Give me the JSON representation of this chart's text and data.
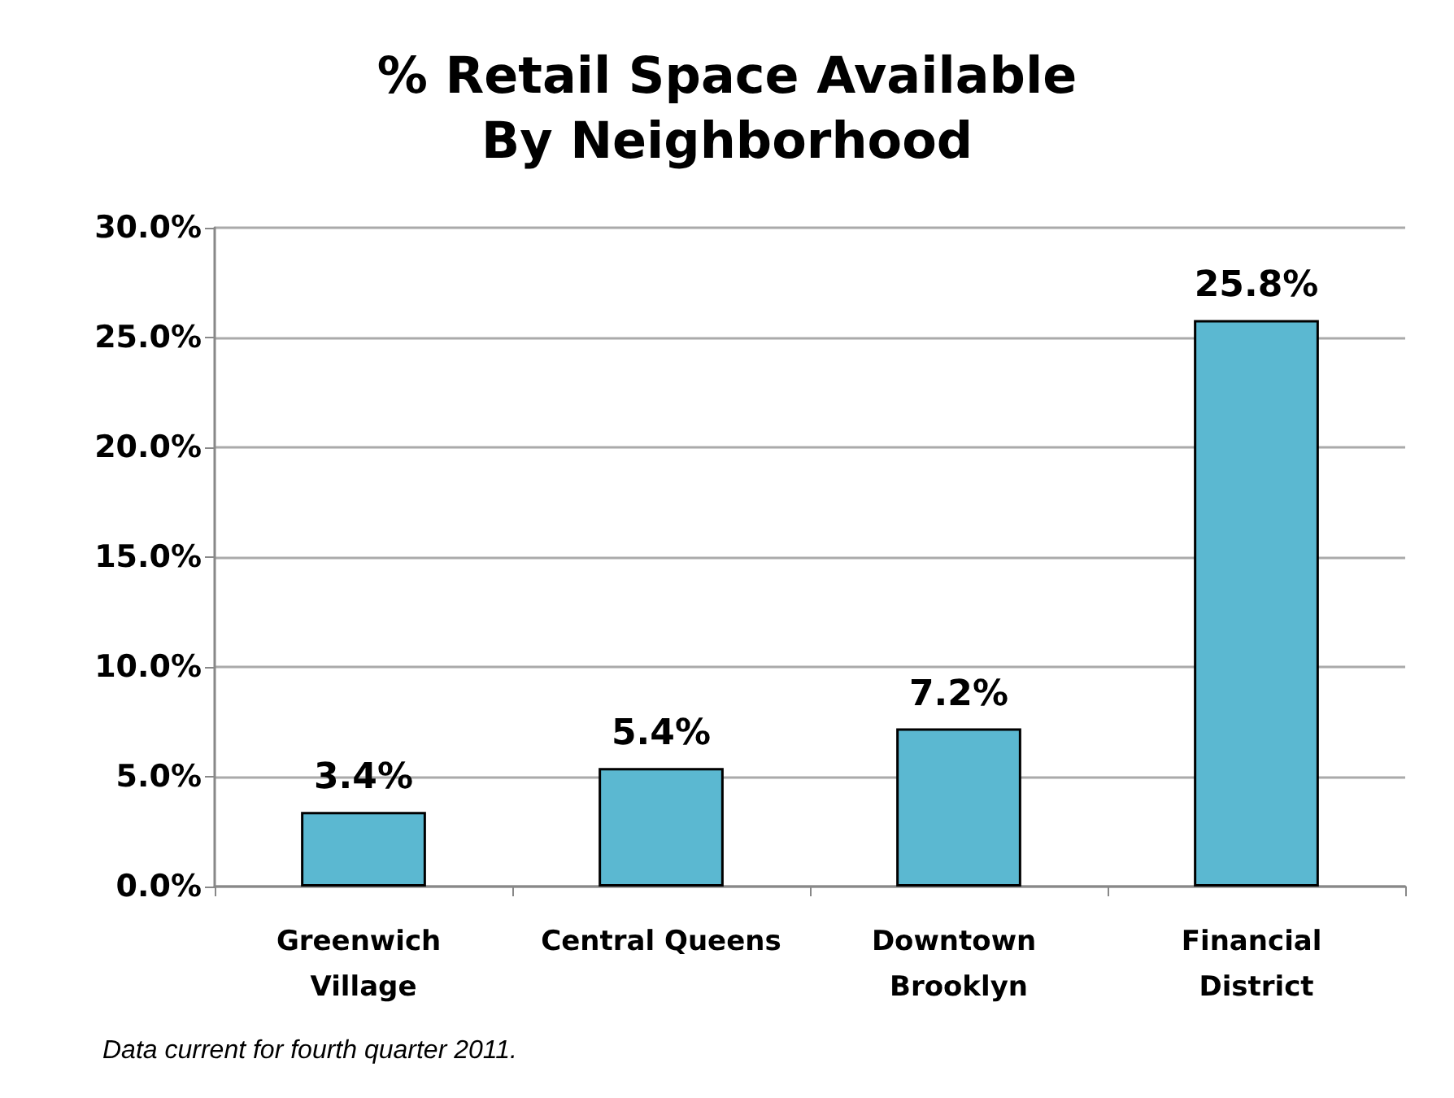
{
  "chart_data": {
    "type": "bar",
    "title": "% Retail Space Available\nBy Neighborhood",
    "categories": [
      "Greenwich Village",
      "Central Queens",
      "Downtown Brooklyn",
      "Financial District"
    ],
    "values": [
      3.4,
      5.4,
      7.2,
      25.8
    ],
    "value_labels": [
      "3.4%",
      "5.4%",
      "7.2%",
      "25.8%"
    ],
    "color": "#5bb8d1",
    "ylim": [
      0,
      30
    ],
    "yticks": [
      {
        "value": 0,
        "label": "0.0%"
      },
      {
        "value": 5,
        "label": "5.0%"
      },
      {
        "value": 10,
        "label": "10.0%"
      },
      {
        "value": 15,
        "label": "15.0%"
      },
      {
        "value": 20,
        "label": "20.0%"
      },
      {
        "value": 25,
        "label": "25.0%"
      },
      {
        "value": 30,
        "label": "30.0%"
      }
    ],
    "grid": "y",
    "annotations": [
      "Data current for fourth quarter 2011."
    ]
  }
}
